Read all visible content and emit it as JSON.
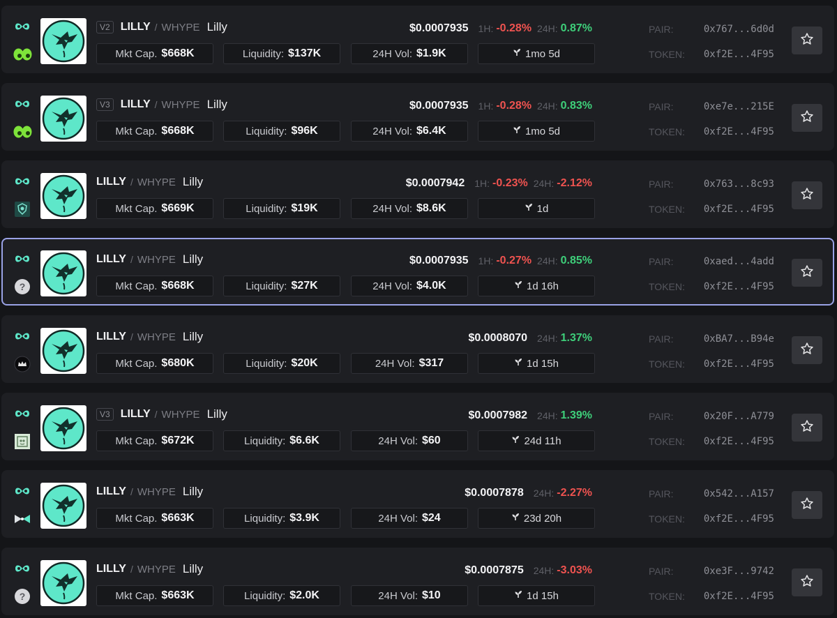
{
  "token": {
    "base": "LILLY",
    "slash": "/",
    "quote": "WHYPE",
    "name": "Lilly"
  },
  "labels": {
    "mcap": "Mkt Cap.",
    "liquidity": "Liquidity:",
    "volume": "24H Vol:",
    "h1": "1H:",
    "h24": "24H:",
    "pair": "PAIR:",
    "token": "TOKEN:"
  },
  "colors": {
    "positive": "#3ecf7a",
    "negative": "#ef5350",
    "accent": "#5ee7c9",
    "selected_border": "#9aa2e6"
  },
  "rows": [
    {
      "version": "V2",
      "dex_icon": "eyes-icon",
      "price": "$0.0007935",
      "h1": "-0.28%",
      "h24": "0.87%",
      "h24_dir": "pos",
      "mcap": "$668K",
      "liquidity": "$137K",
      "volume": "$1.9K",
      "age": "1mo 5d",
      "pair": "0x767...6d0d",
      "tokenaddr": "0xf2E...4F95",
      "selected": false
    },
    {
      "version": "V3",
      "dex_icon": "eyes-icon",
      "price": "$0.0007935",
      "h1": "-0.28%",
      "h24": "0.83%",
      "h24_dir": "pos",
      "mcap": "$668K",
      "liquidity": "$96K",
      "volume": "$6.4K",
      "age": "1mo 5d",
      "pair": "0xe7e...215E",
      "tokenaddr": "0xf2E...4F95",
      "selected": false
    },
    {
      "version": "",
      "dex_icon": "shield-dex-icon",
      "price": "$0.0007942",
      "h1": "-0.23%",
      "h24": "-2.12%",
      "h24_dir": "neg",
      "mcap": "$669K",
      "liquidity": "$19K",
      "volume": "$8.6K",
      "age": "1d",
      "pair": "0x763...8c93",
      "tokenaddr": "0xf2E...4F95",
      "selected": false
    },
    {
      "version": "",
      "dex_icon": "question-icon",
      "price": "$0.0007935",
      "h1": "-0.27%",
      "h24": "0.85%",
      "h24_dir": "pos",
      "mcap": "$668K",
      "liquidity": "$27K",
      "volume": "$4.0K",
      "age": "1d 16h",
      "pair": "0xaed...4add",
      "tokenaddr": "0xf2E...4F95",
      "selected": true
    },
    {
      "version": "",
      "dex_icon": "crown-dex-icon",
      "price": "$0.0008070",
      "h1": "",
      "h24": "1.37%",
      "h24_dir": "pos",
      "mcap": "$680K",
      "liquidity": "$20K",
      "volume": "$317",
      "age": "1d 15h",
      "pair": "0xBA7...B94e",
      "tokenaddr": "0xf2E...4F95",
      "selected": false
    },
    {
      "version": "V3",
      "dex_icon": "square-dex-icon",
      "price": "$0.0007982",
      "h1": "",
      "h24": "1.39%",
      "h24_dir": "pos",
      "mcap": "$672K",
      "liquidity": "$6.6K",
      "volume": "$60",
      "age": "24d 11h",
      "pair": "0x20F...A779",
      "tokenaddr": "0xf2E...4F95",
      "selected": false
    },
    {
      "version": "",
      "dex_icon": "bowtie-dex-icon",
      "price": "$0.0007878",
      "h1": "",
      "h24": "-2.27%",
      "h24_dir": "neg",
      "mcap": "$663K",
      "liquidity": "$3.9K",
      "volume": "$24",
      "age": "23d 20h",
      "pair": "0x542...A157",
      "tokenaddr": "0xf2E...4F95",
      "selected": false
    },
    {
      "version": "",
      "dex_icon": "question-icon",
      "price": "$0.0007875",
      "h1": "",
      "h24": "-3.03%",
      "h24_dir": "neg",
      "mcap": "$663K",
      "liquidity": "$2.0K",
      "volume": "$10",
      "age": "1d 15h",
      "pair": "0xe3F...9742",
      "tokenaddr": "0xf2E...4F95",
      "selected": false
    }
  ]
}
